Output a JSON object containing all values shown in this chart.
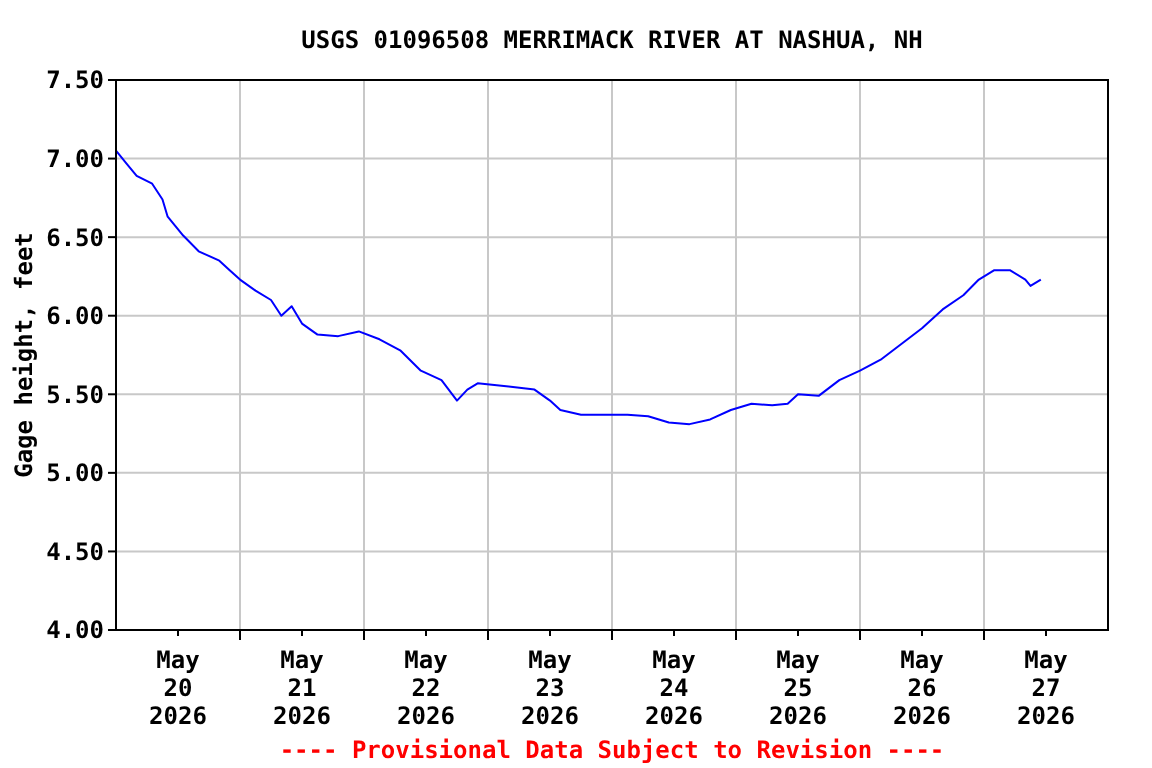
{
  "chart_data": {
    "type": "line",
    "title": "USGS 01096508 MERRIMACK RIVER AT NASHUA, NH",
    "ylabel": "Gage height, feet",
    "annotations": [
      "---- Provisional Data Subject to Revision ----"
    ],
    "grid": true,
    "marker": "none",
    "line_style": "solid",
    "xlim": [
      "2026-05-20T00:00",
      "2026-05-28T00:00"
    ],
    "xticks": [
      {
        "value": "2026-05-20T12:00",
        "label": "May\n20\n2026"
      },
      {
        "value": "2026-05-21T12:00",
        "label": "May\n21\n2026"
      },
      {
        "value": "2026-05-22T12:00",
        "label": "May\n22\n2026"
      },
      {
        "value": "2026-05-23T12:00",
        "label": "May\n23\n2026"
      },
      {
        "value": "2026-05-24T12:00",
        "label": "May\n24\n2026"
      },
      {
        "value": "2026-05-25T12:00",
        "label": "May\n25\n2026"
      },
      {
        "value": "2026-05-26T12:00",
        "label": "May\n26\n2026"
      },
      {
        "value": "2026-05-27T12:00",
        "label": "May\n27\n2026"
      },
      {
        "value": "2026-05-21T00:00",
        "label": null
      },
      {
        "value": "2026-05-22T00:00",
        "label": null
      },
      {
        "value": "2026-05-23T00:00",
        "label": null
      },
      {
        "value": "2026-05-24T00:00",
        "label": null
      },
      {
        "value": "2026-05-25T00:00",
        "label": null
      },
      {
        "value": "2026-05-26T00:00",
        "label": null
      },
      {
        "value": "2026-05-27T00:00",
        "label": null
      }
    ],
    "ylim": [
      4.0,
      7.5
    ],
    "yticks": [
      {
        "value": 4.0,
        "label": "4.00"
      },
      {
        "value": 4.5,
        "label": "4.50"
      },
      {
        "value": 5.0,
        "label": "5.00"
      },
      {
        "value": 5.5,
        "label": "5.50"
      },
      {
        "value": 6.0,
        "label": "6.00"
      },
      {
        "value": 6.5,
        "label": "6.50"
      },
      {
        "value": 7.0,
        "label": "7.00"
      },
      {
        "value": 7.5,
        "label": "7.50"
      }
    ],
    "x": [
      "2026-05-20T00:00",
      "2026-05-20T02:00",
      "2026-05-20T04:00",
      "2026-05-20T07:00",
      "2026-05-20T09:00",
      "2026-05-20T10:00",
      "2026-05-20T13:00",
      "2026-05-20T16:00",
      "2026-05-20T20:00",
      "2026-05-20T22:00",
      "2026-05-21T00:00",
      "2026-05-21T03:00",
      "2026-05-21T06:00",
      "2026-05-21T08:00",
      "2026-05-21T10:00",
      "2026-05-21T12:00",
      "2026-05-21T15:00",
      "2026-05-21T19:00",
      "2026-05-21T23:00",
      "2026-05-22T03:00",
      "2026-05-22T07:00",
      "2026-05-22T11:00",
      "2026-05-22T15:00",
      "2026-05-22T18:00",
      "2026-05-22T20:00",
      "2026-05-22T22:00",
      "2026-05-23T04:00",
      "2026-05-23T09:00",
      "2026-05-23T12:00",
      "2026-05-23T14:00",
      "2026-05-23T18:00",
      "2026-05-23T22:00",
      "2026-05-24T03:00",
      "2026-05-24T07:00",
      "2026-05-24T11:00",
      "2026-05-24T15:00",
      "2026-05-24T19:00",
      "2026-05-24T23:00",
      "2026-05-25T03:00",
      "2026-05-25T07:00",
      "2026-05-25T10:00",
      "2026-05-25T12:00",
      "2026-05-25T16:00",
      "2026-05-25T20:00",
      "2026-05-26T00:00",
      "2026-05-26T04:00",
      "2026-05-26T08:00",
      "2026-05-26T12:00",
      "2026-05-26T16:00",
      "2026-05-26T20:00",
      "2026-05-26T23:00",
      "2026-05-27T02:00",
      "2026-05-27T05:00",
      "2026-05-27T08:00",
      "2026-05-27T09:00",
      "2026-05-27T11:00"
    ],
    "series": [
      {
        "color": "#0000ff",
        "values": [
          7.05,
          6.97,
          6.89,
          6.84,
          6.74,
          6.63,
          6.51,
          6.41,
          6.35,
          6.29,
          6.23,
          6.16,
          6.1,
          6.0,
          6.06,
          5.95,
          5.88,
          5.87,
          5.9,
          5.85,
          5.78,
          5.65,
          5.59,
          5.46,
          5.53,
          5.57,
          5.55,
          5.53,
          5.46,
          5.4,
          5.37,
          5.37,
          5.37,
          5.36,
          5.32,
          5.31,
          5.34,
          5.4,
          5.44,
          5.43,
          5.44,
          5.5,
          5.49,
          5.59,
          5.65,
          5.72,
          5.82,
          5.92,
          6.04,
          6.13,
          6.23,
          6.29,
          6.29,
          6.23,
          6.19,
          6.23
        ]
      }
    ]
  }
}
